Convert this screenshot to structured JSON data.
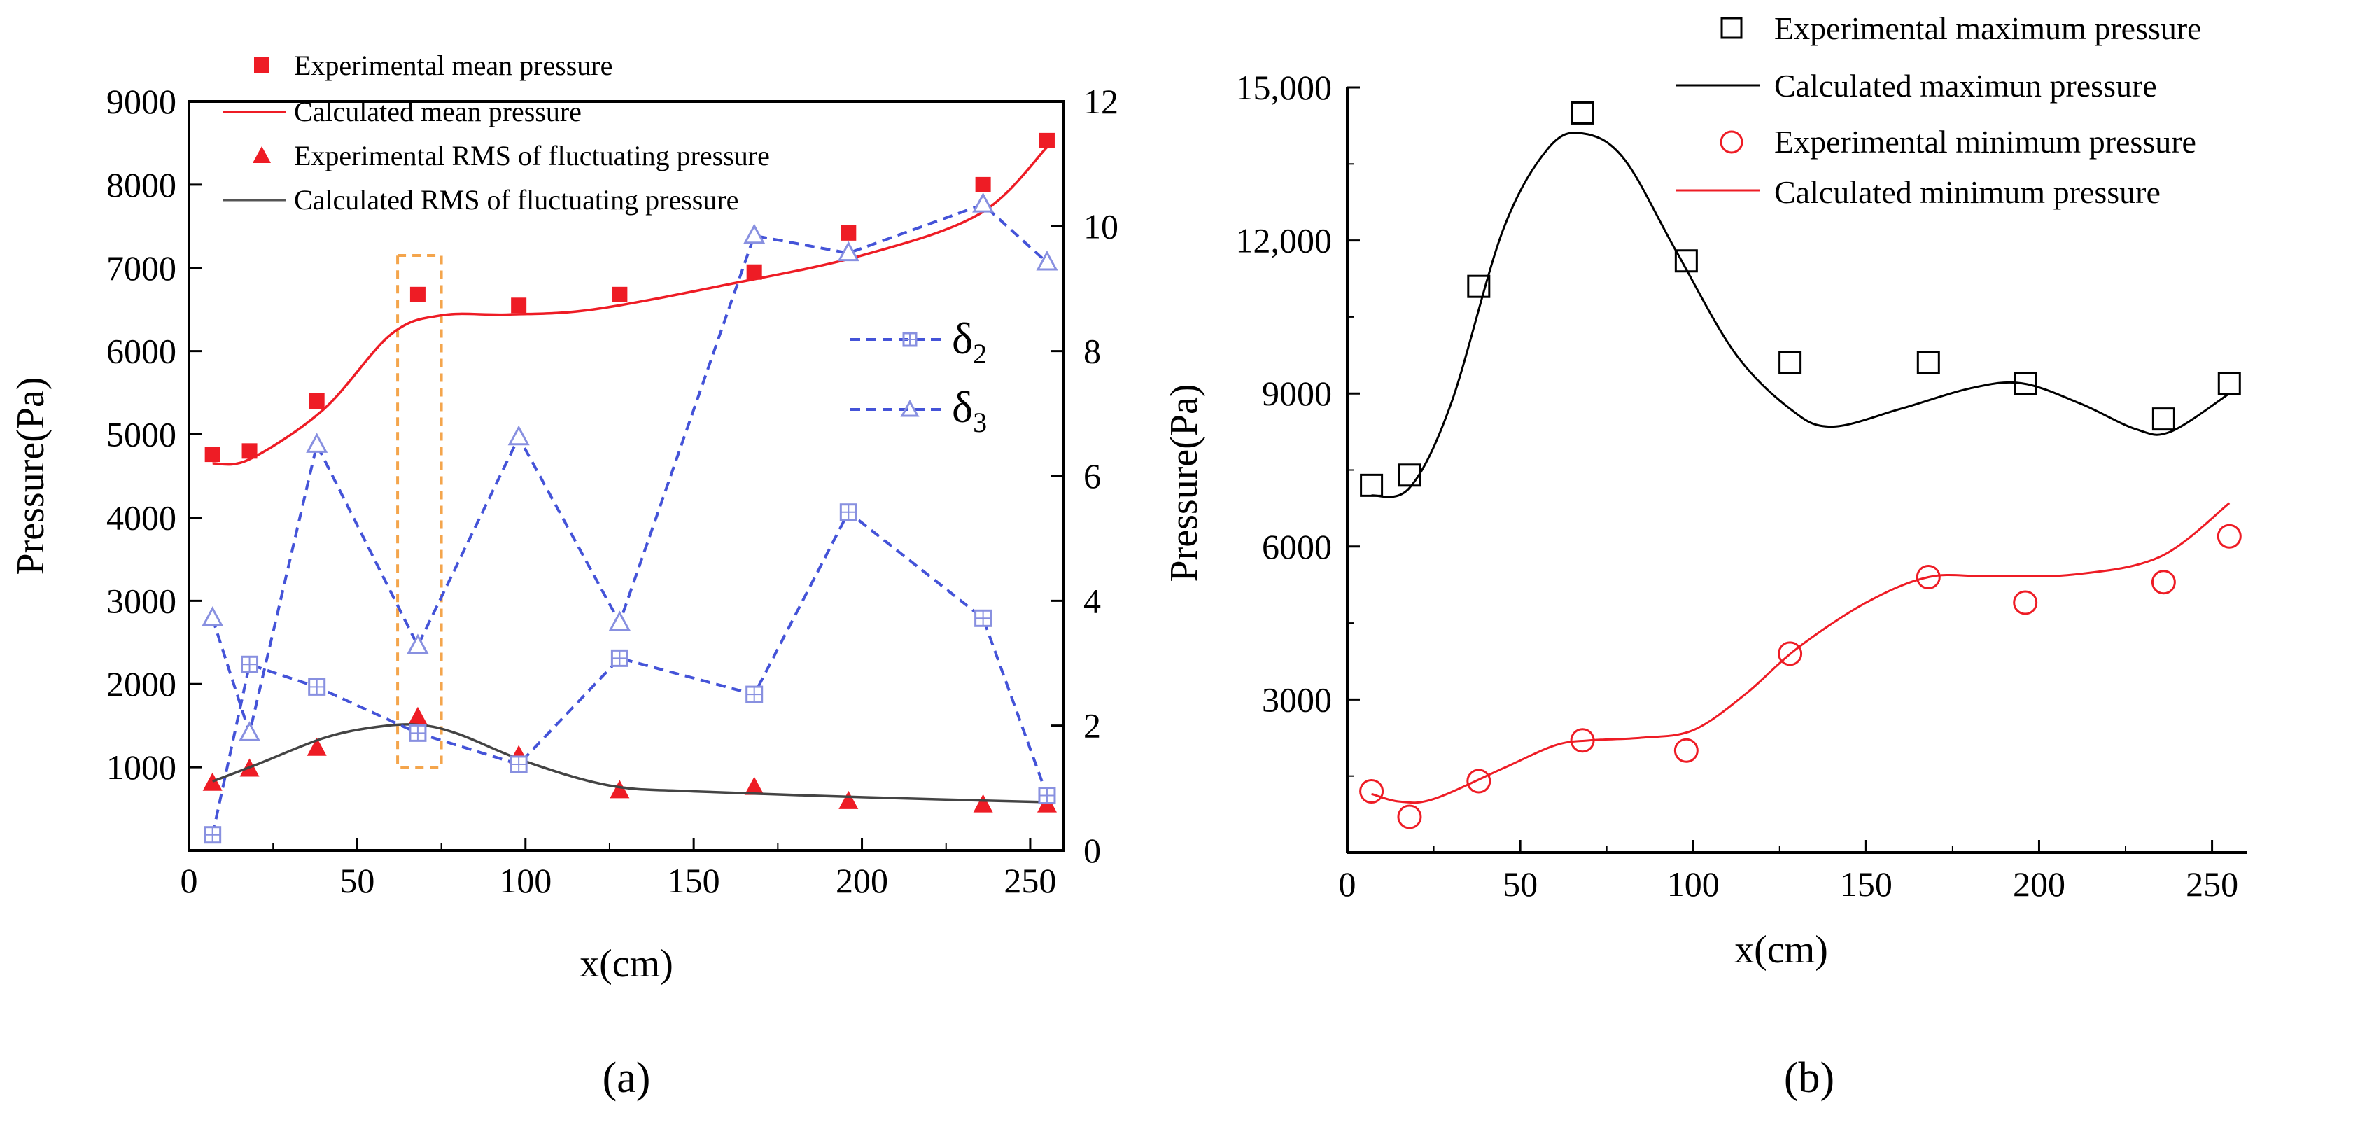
{
  "colors": {
    "red": "#ee1c25",
    "dashed_blue": "#4453d8",
    "marker_blue": "#8890e0",
    "orange": "#f4a54c",
    "black": "#000000"
  },
  "panel_a_label": "(a)",
  "panel_b_label": "(b)",
  "chart_data": [
    {
      "type": "line",
      "panel": "a",
      "xlabel": "x(cm)",
      "ylabel": "Pressure(Pa)",
      "xlim": [
        0,
        260
      ],
      "ylim": [
        0,
        9000
      ],
      "y2lim": [
        0,
        12
      ],
      "xticks": [
        0,
        50,
        100,
        150,
        200,
        250
      ],
      "yticks": [
        1000,
        2000,
        3000,
        4000,
        5000,
        6000,
        7000,
        8000,
        9000
      ],
      "y2ticks": [
        0,
        2,
        4,
        6,
        8,
        10,
        12
      ],
      "legend": [
        "Experimental mean pressure",
        "Calculated mean pressure",
        "Experimental RMS of fluctuating pressure",
        "Calculated RMS of fluctuating pressure"
      ],
      "delta_legend": {
        "delta2": "δ",
        "delta2_sub": "2",
        "delta3": "δ",
        "delta3_sub": "3"
      },
      "highlight_x_range": [
        62,
        75
      ],
      "series": [
        {
          "name": "Experimental mean pressure",
          "axis": "left",
          "style": "square-red",
          "x": [
            7,
            18,
            38,
            68,
            98,
            128,
            168,
            196,
            236,
            255
          ],
          "y": [
            4760,
            4800,
            5400,
            6680,
            6550,
            6680,
            6950,
            7420,
            8000,
            8530
          ]
        },
        {
          "name": "Calculated mean pressure",
          "axis": "left",
          "style": "line-red",
          "x": [
            7,
            18,
            40,
            60,
            75,
            95,
            120,
            160,
            200,
            235,
            255
          ],
          "y": [
            4650,
            4700,
            5300,
            6200,
            6430,
            6440,
            6500,
            6800,
            7150,
            7650,
            8450
          ]
        },
        {
          "name": "Experimental RMS of fluctuating pressure",
          "axis": "left",
          "style": "triangle-red",
          "x": [
            7,
            18,
            38,
            68,
            98,
            128,
            168,
            196,
            236,
            255
          ],
          "y": [
            810,
            980,
            1230,
            1600,
            1140,
            720,
            760,
            590,
            550,
            550
          ]
        },
        {
          "name": "Calculated RMS of fluctuating pressure",
          "axis": "left",
          "style": "line-black",
          "x": [
            7,
            20,
            40,
            55,
            68,
            80,
            100,
            125,
            150,
            200,
            255
          ],
          "y": [
            830,
            1030,
            1350,
            1480,
            1510,
            1400,
            1070,
            780,
            710,
            640,
            580
          ]
        },
        {
          "name": "δ2",
          "axis": "right",
          "style": "square-blue-dashed",
          "x": [
            7,
            18,
            38,
            68,
            98,
            128,
            168,
            196,
            236,
            255
          ],
          "y": [
            0.25,
            2.98,
            2.62,
            1.88,
            1.38,
            3.08,
            2.5,
            5.42,
            3.72,
            0.88
          ]
        },
        {
          "name": "δ3",
          "axis": "right",
          "style": "triangle-blue-dashed",
          "x": [
            7,
            18,
            38,
            68,
            98,
            128,
            168,
            196,
            236,
            255
          ],
          "y": [
            3.72,
            1.88,
            6.5,
            3.28,
            6.62,
            3.65,
            9.85,
            9.57,
            10.35,
            9.42
          ]
        }
      ]
    },
    {
      "type": "line",
      "panel": "b",
      "xlabel": "x(cm)",
      "ylabel": "Pressure(Pa)",
      "xlim": [
        0,
        260
      ],
      "ylim": [
        0,
        15000
      ],
      "xticks": [
        0,
        50,
        100,
        150,
        200,
        250
      ],
      "yticks": [
        3000,
        6000,
        9000,
        12000,
        15000
      ],
      "ytick_labels": [
        "3000",
        "6000",
        "9000",
        "12,000",
        "15,000"
      ],
      "legend": [
        "Experimental maximum pressure",
        "Calculated maximun pressure",
        "Experimental minimum pressure",
        "Calculated minimum pressure"
      ],
      "series": [
        {
          "name": "Experimental maximum pressure",
          "style": "square-open-black",
          "x": [
            7,
            18,
            38,
            68,
            98,
            128,
            168,
            196,
            236,
            255
          ],
          "y": [
            7200,
            7400,
            11100,
            14500,
            11600,
            9600,
            9600,
            9200,
            8500,
            9200
          ]
        },
        {
          "name": "Calculated maximun pressure",
          "style": "line-black",
          "x": [
            7,
            18,
            30,
            45,
            58,
            68,
            80,
            95,
            112,
            128,
            140,
            160,
            180,
            195,
            212,
            228,
            238,
            255
          ],
          "y": [
            7000,
            7150,
            8800,
            12200,
            13800,
            14100,
            13600,
            11800,
            9800,
            8700,
            8350,
            8700,
            9100,
            9200,
            8800,
            8300,
            8250,
            9000
          ]
        },
        {
          "name": "Experimental minimum pressure",
          "style": "circle-open-red",
          "x": [
            7,
            18,
            38,
            68,
            98,
            128,
            168,
            196,
            236,
            255
          ],
          "y": [
            1200,
            700,
            1400,
            2200,
            2000,
            3900,
            5400,
            4900,
            5300,
            6200
          ]
        },
        {
          "name": "Calculated minimum pressure",
          "style": "line-red",
          "x": [
            7,
            15,
            25,
            45,
            60,
            70,
            85,
            100,
            115,
            130,
            150,
            168,
            185,
            210,
            235,
            255
          ],
          "y": [
            1150,
            1000,
            1050,
            1650,
            2100,
            2200,
            2250,
            2400,
            3100,
            4000,
            4900,
            5400,
            5420,
            5450,
            5800,
            6850
          ]
        }
      ]
    }
  ]
}
